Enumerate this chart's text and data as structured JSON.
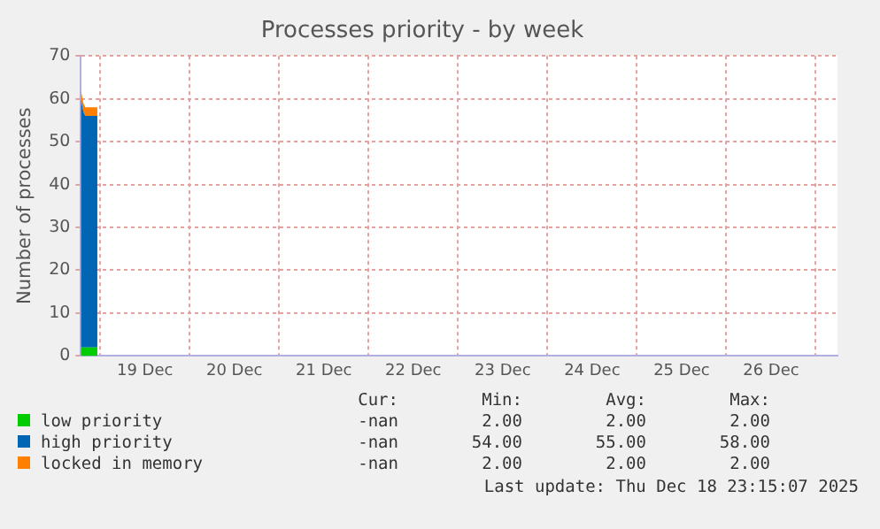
{
  "chart_data": {
    "type": "area",
    "stacked": true,
    "title": "Processes priority - by week",
    "ylabel": "Number of processes",
    "x": [
      "2025-12-18T18:50",
      "2025-12-18T19:30",
      "2025-12-18T20:00",
      "2025-12-18T23:15"
    ],
    "series": [
      {
        "name": "low priority",
        "color": "#00cc00",
        "values": [
          2,
          2,
          2,
          2
        ]
      },
      {
        "name": "high priority",
        "color": "#0066b3",
        "values": [
          58,
          55,
          54,
          54
        ]
      },
      {
        "name": "locked in memory",
        "color": "#ff8000",
        "values": [
          2,
          2,
          2,
          2
        ]
      }
    ],
    "xlim": [
      "2025-12-18T18:50",
      "2025-12-27T05:50"
    ],
    "xticks": [
      {
        "value": "2025-12-19T00:00",
        "label": null
      },
      {
        "value": "2025-12-19T12:00",
        "label": "19 Dec"
      },
      {
        "value": "2025-12-20T00:00",
        "label": null
      },
      {
        "value": "2025-12-20T12:00",
        "label": "20 Dec"
      },
      {
        "value": "2025-12-21T00:00",
        "label": null
      },
      {
        "value": "2025-12-21T12:00",
        "label": "21 Dec"
      },
      {
        "value": "2025-12-22T00:00",
        "label": null
      },
      {
        "value": "2025-12-22T12:00",
        "label": "22 Dec"
      },
      {
        "value": "2025-12-23T00:00",
        "label": null
      },
      {
        "value": "2025-12-23T12:00",
        "label": "23 Dec"
      },
      {
        "value": "2025-12-24T00:00",
        "label": null
      },
      {
        "value": "2025-12-24T12:00",
        "label": "24 Dec"
      },
      {
        "value": "2025-12-25T00:00",
        "label": null
      },
      {
        "value": "2025-12-25T12:00",
        "label": "25 Dec"
      },
      {
        "value": "2025-12-26T00:00",
        "label": null
      },
      {
        "value": "2025-12-26T12:00",
        "label": "26 Dec"
      },
      {
        "value": "2025-12-27T00:00",
        "label": null
      }
    ],
    "ylim": [
      0,
      70
    ],
    "yticks": [
      0,
      10,
      20,
      30,
      40,
      50,
      60,
      70
    ],
    "grid": true,
    "legend": "bottom",
    "annotations": [
      "Cur:",
      "Min:",
      "Avg:",
      "Max:",
      "-nan",
      "2.00",
      "2.00",
      "2.00",
      "-nan",
      "54.00",
      "55.00",
      "58.00",
      "-nan",
      "2.00",
      "2.00",
      "2.00",
      "Last update: Thu Dec 18 23:15:07 2025"
    ]
  }
}
